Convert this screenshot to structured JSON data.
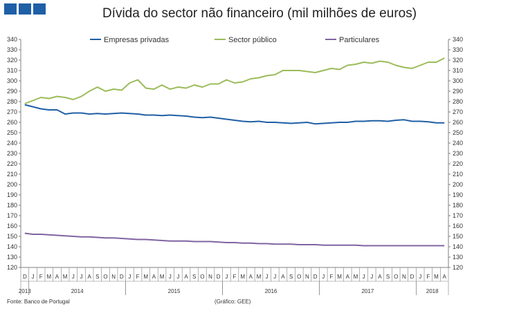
{
  "title": "Dívida do sector não financeiro (mil milhões de euros)",
  "source": "Fonte: Banco de Portugal",
  "credit": "(Gráfico: GEE)",
  "colors": {
    "logo": "#1f5fa6",
    "axis": "#7f7f7f",
    "text": "#333333"
  },
  "chart_data": {
    "type": "line",
    "title": "Dívida do sector não financeiro (mil milhões de euros)",
    "ylim": [
      120,
      340
    ],
    "ytick_step": 10,
    "right_axis": true,
    "grid": false,
    "legend_position": "top",
    "x": [
      "D",
      "J",
      "F",
      "M",
      "A",
      "M",
      "J",
      "J",
      "A",
      "S",
      "O",
      "N",
      "D",
      "J",
      "F",
      "M",
      "A",
      "M",
      "J",
      "J",
      "A",
      "S",
      "O",
      "N",
      "D",
      "J",
      "F",
      "M",
      "A",
      "M",
      "J",
      "J",
      "A",
      "S",
      "O",
      "N",
      "D",
      "J",
      "F",
      "M",
      "A",
      "M",
      "J",
      "J",
      "A",
      "S",
      "O",
      "N",
      "D",
      "J",
      "F",
      "M",
      "A"
    ],
    "year_labels": [
      {
        "label": "2013",
        "start": 0,
        "end": 0
      },
      {
        "label": "2014",
        "start": 1,
        "end": 12
      },
      {
        "label": "2015",
        "start": 13,
        "end": 24
      },
      {
        "label": "2016",
        "start": 25,
        "end": 36
      },
      {
        "label": "2017",
        "start": 37,
        "end": 48
      },
      {
        "label": "2018",
        "start": 49,
        "end": 52
      }
    ],
    "series": [
      {
        "name": "Empresas privadas",
        "color": "#1f5fa6",
        "values": [
          277,
          275,
          273,
          272,
          272,
          268,
          269,
          269,
          268,
          268.5,
          268,
          268.5,
          269,
          268.5,
          268,
          267,
          267,
          266.5,
          267,
          266.5,
          266,
          265,
          264.5,
          265,
          264,
          263,
          262,
          261,
          260.5,
          261,
          260,
          260,
          259.5,
          259,
          259.5,
          260,
          258.5,
          259,
          259.5,
          260,
          260,
          261,
          261,
          261.5,
          261.5,
          261,
          262,
          262.5,
          261,
          261,
          260.5,
          259.5,
          259.5
        ]
      },
      {
        "name": "Sector público",
        "color": "#9bbb59",
        "values": [
          278,
          281,
          284,
          283,
          285,
          284,
          282,
          285,
          290,
          294,
          290,
          292,
          291,
          298,
          301,
          293,
          292,
          296,
          292,
          294,
          293,
          296,
          294,
          297,
          297,
          301,
          298,
          299,
          302,
          303,
          305,
          306,
          310,
          310,
          310,
          309,
          308,
          310,
          312,
          311,
          315,
          316,
          318,
          317,
          319,
          318,
          315,
          313,
          312,
          315,
          318,
          318,
          322
        ]
      },
      {
        "name": "Particulares",
        "color": "#8064a2",
        "values": [
          153,
          152,
          152,
          151.5,
          151,
          150.5,
          150,
          149.5,
          149.5,
          149,
          148.5,
          148.5,
          148,
          147.5,
          147,
          147,
          146.5,
          146,
          145.5,
          145.5,
          145.5,
          145,
          145,
          145,
          144.5,
          144,
          144,
          143.5,
          143.5,
          143,
          143,
          142.5,
          142.5,
          142.5,
          142,
          142,
          142,
          141.5,
          141.5,
          141.5,
          141.5,
          141.5,
          141,
          141,
          141,
          141,
          141,
          141,
          141,
          141,
          141,
          141,
          141
        ]
      }
    ]
  }
}
